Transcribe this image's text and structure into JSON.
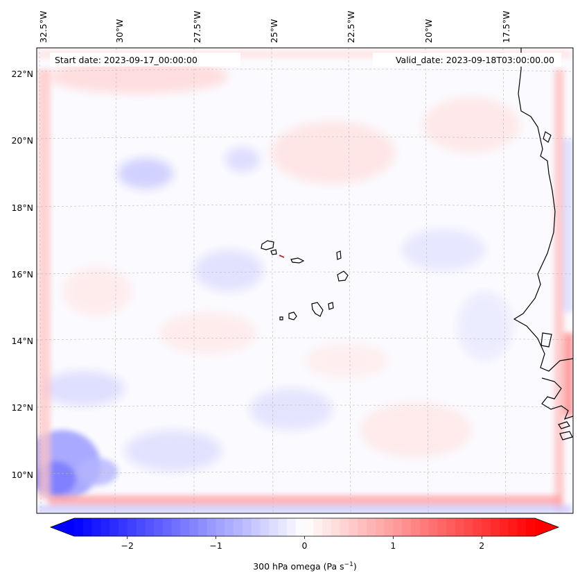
{
  "map": {
    "start_label": "Start date: 2023-09-17_00:00:00",
    "valid_label": "Valid_date: 2023-09-18T03:00:00.00",
    "field": "300 hPa omega",
    "lon_ticks": [
      "32.5°W",
      "30°W",
      "27.5°W",
      "25°W",
      "22.5°W",
      "20°W",
      "17.5°W"
    ],
    "lat_ticks": [
      "22°N",
      "20°N",
      "18°N",
      "16°N",
      "14°N",
      "12°N",
      "10°N"
    ],
    "region": {
      "lon_range": [
        -32.6,
        -15.3
      ],
      "lat_range": [
        8.9,
        22.8
      ]
    },
    "colormap": {
      "name": "bwr",
      "low_color": "#0000ff",
      "mid_color": "#ffffff",
      "high_color": "#ff0000"
    }
  },
  "colorbar": {
    "label_main": "300 hPa omega (Pa s",
    "label_exp": "−1",
    "label_close": ")",
    "ticks": [
      "−2",
      "−1",
      "0",
      "1",
      "2"
    ],
    "tick_values": [
      -2,
      -1,
      0,
      1,
      2
    ],
    "range": [
      -2.6,
      2.6
    ],
    "extend": "both"
  }
}
